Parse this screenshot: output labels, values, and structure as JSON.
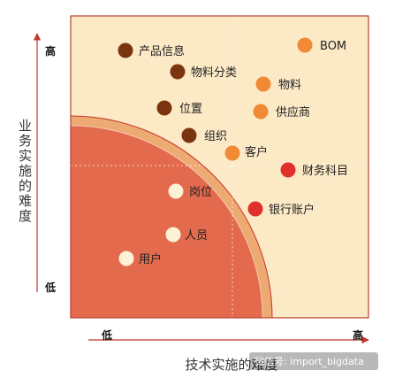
{
  "axes": {
    "x_title": "技术实施的难度",
    "x_low": "低",
    "x_high": "高",
    "y_title": "业务实施的难度",
    "y_low": "低",
    "y_high": "高"
  },
  "colors": {
    "outer_zone": "#fce9c6",
    "middle_zone": "#eeaa73",
    "inner_zone": "#e36a4c",
    "arc_line": "#c9322a",
    "axis_arrow": "#c0392b",
    "frame": "#bb4030"
  },
  "items": [
    {
      "label": "产品信息",
      "color": "#7a3510"
    },
    {
      "label": "物料分类",
      "color": "#7a3510"
    },
    {
      "label": "位置",
      "color": "#7a3510"
    },
    {
      "label": "组织",
      "color": "#7a3510"
    },
    {
      "label": "BOM",
      "color": "#f08a34"
    },
    {
      "label": "物料",
      "color": "#f08a34"
    },
    {
      "label": "供应商",
      "color": "#f08a34"
    },
    {
      "label": "客户",
      "color": "#f08a34"
    },
    {
      "label": "财务科目",
      "color": "#e0302c"
    },
    {
      "label": "银行账户",
      "color": "#e0302c"
    },
    {
      "label": "岗位",
      "color": "#fdf1d8"
    },
    {
      "label": "人员",
      "color": "#fdf1d8"
    },
    {
      "label": "用户",
      "color": "#fdf1d8"
    }
  ],
  "watermark": "微信号: import_bigdata"
}
